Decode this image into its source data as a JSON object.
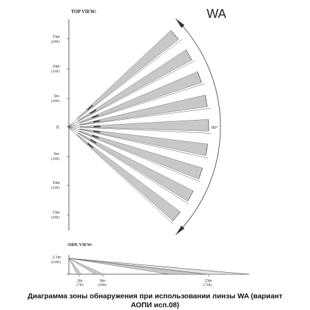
{
  "top_view": {
    "title": "TOP VIEW:",
    "lens_name": "WA",
    "angle_label": "90°",
    "origin_label": "0",
    "distance_labels_upper": [
      {
        "m": "15m",
        "ft": "(49ft)"
      },
      {
        "m": "10m",
        "ft": "(33ft)"
      },
      {
        "m": "5m",
        "ft": "(16ft)"
      }
    ],
    "distance_labels_lower": [
      {
        "m": "5m",
        "ft": "(16ft)"
      },
      {
        "m": "10m",
        "ft": "(33ft)"
      },
      {
        "m": "15m",
        "ft": "(49ft)"
      }
    ],
    "beam_count": 9
  },
  "side_view": {
    "title": "SIDE VIEW:",
    "height_label": {
      "m": "2.1m",
      "ft": "(6.8ft)"
    },
    "distance_labels": [
      {
        "m": "2m",
        "ft": "(7ft)"
      },
      {
        "m": "6m",
        "ft": "(20ft)"
      },
      {
        "m": "23m",
        "ft": "(75ft)"
      }
    ]
  },
  "caption": {
    "line1": "Диаграмма зоны обнаружения при использовании линзы WA (вариант",
    "line2": "АОПИ исп.08)"
  },
  "colors": {
    "beam_fill": "#c8c8c8",
    "beam_stroke": "#555555",
    "line": "#333333"
  }
}
